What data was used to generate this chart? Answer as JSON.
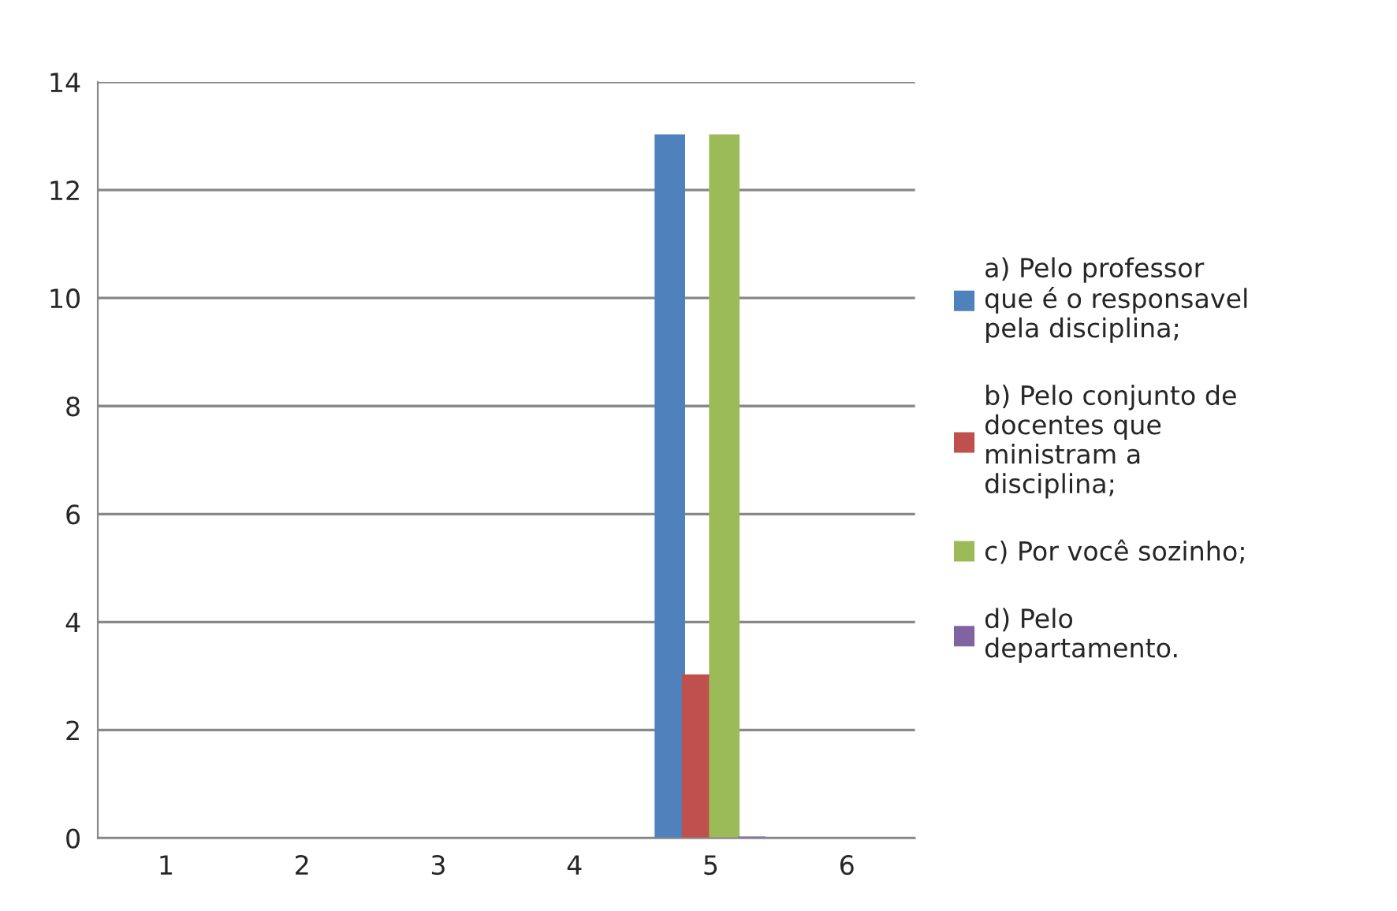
{
  "chart_data": {
    "type": "bar",
    "categories": [
      "1",
      "2",
      "3",
      "4",
      "5",
      "6"
    ],
    "series": [
      {
        "name": "a) Pelo professor que é o responsavel pela disciplina;",
        "color": "#4f81bd",
        "values": [
          null,
          null,
          null,
          null,
          13,
          null
        ]
      },
      {
        "name": "b) Pelo conjunto de docentes que ministram a disciplina;",
        "color": "#c0504d",
        "values": [
          null,
          null,
          null,
          null,
          3,
          null
        ]
      },
      {
        "name": "c) Por você sozinho;",
        "color": "#9bbb59",
        "values": [
          null,
          null,
          null,
          null,
          13,
          null
        ]
      },
      {
        "name": "d) Pelo departamento.",
        "color": "#8064a2",
        "values": [
          null,
          null,
          null,
          null,
          0,
          null
        ]
      }
    ],
    "ylim": [
      0,
      14
    ],
    "yticks": [
      0,
      2,
      4,
      6,
      8,
      10,
      12,
      14
    ],
    "grid": "y",
    "legend": "right"
  }
}
